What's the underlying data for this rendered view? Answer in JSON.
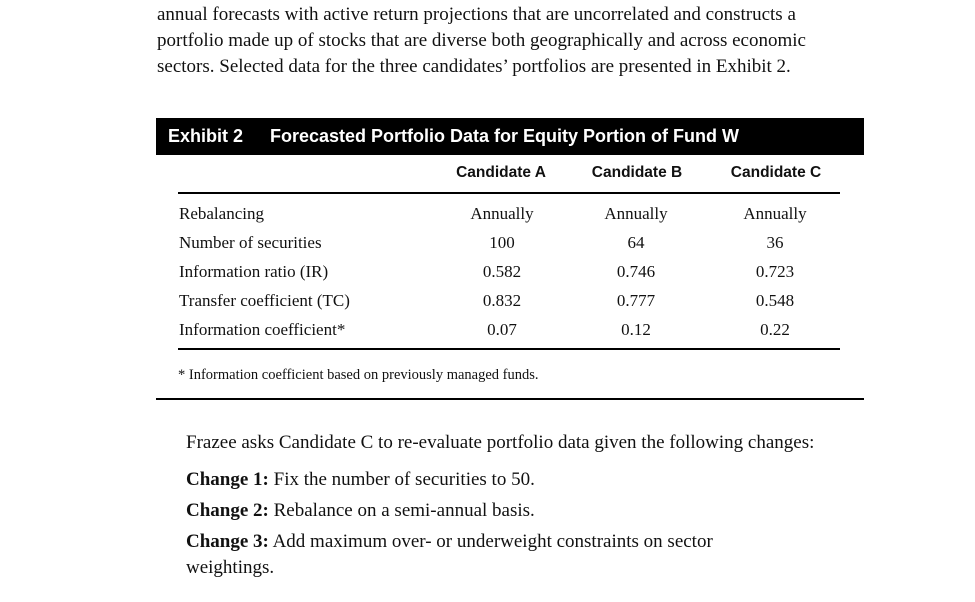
{
  "intro": {
    "lines": [
      "annual forecasts with active return projections that are uncorrelated and constructs a",
      "portfolio made up of stocks that are diverse both geographically and across economic",
      "sectors. Selected data for the three candidates’ portfolios are presented in Exhibit 2."
    ]
  },
  "exhibit": {
    "number": "Exhibit 2",
    "title": "Forecasted Portfolio Data for Equity Portion of Fund W",
    "columns": [
      "Candidate A",
      "Candidate B",
      "Candidate C"
    ],
    "rows": [
      {
        "label": "Rebalancing",
        "values": [
          "Annually",
          "Annually",
          "Annually"
        ]
      },
      {
        "label": "Number of securities",
        "values": [
          "100",
          "64",
          "36"
        ]
      },
      {
        "label": "Information ratio (IR)",
        "values": [
          "0.582",
          "0.746",
          "0.723"
        ]
      },
      {
        "label": "Transfer coefficient (TC)",
        "values": [
          "0.832",
          "0.777",
          "0.548"
        ]
      },
      {
        "label": "Information coefficient*",
        "values": [
          "0.07",
          "0.12",
          "0.22"
        ]
      }
    ],
    "footnote": "* Information coefficient based on previously managed funds."
  },
  "post": {
    "intro": "Frazee asks Candidate C to re-evaluate portfolio data given the following changes:",
    "changes": [
      {
        "label": "Change 1:",
        "text": "Fix the number of securities to 50."
      },
      {
        "label": "Change 2:",
        "text": "Rebalance on a semi-annual basis."
      },
      {
        "label": "Change 3:",
        "text": "Add maximum over- or underweight constraints on sector"
      }
    ],
    "continuation": "weightings."
  }
}
